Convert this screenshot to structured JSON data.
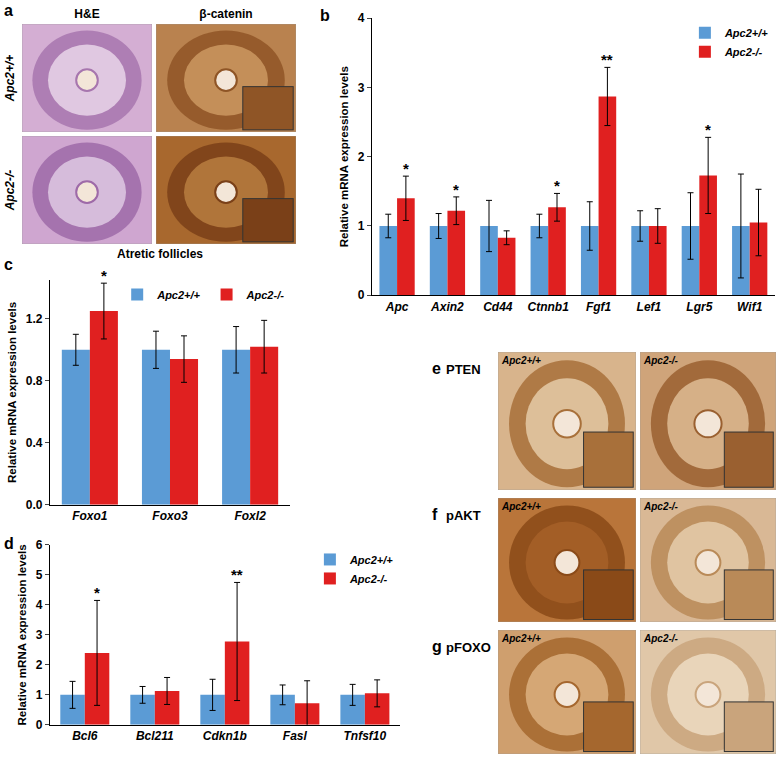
{
  "chart_data": [
    {
      "type": "bar",
      "title": "b",
      "y_label": "Relative mRNA expression levels",
      "categories": [
        "Apc",
        "Axin2",
        "Cd44",
        "Ctnnb1",
        "Fgf1",
        "Lef1",
        "Lgr5",
        "Wif1"
      ],
      "series": [
        {
          "name": "Apc2+/+",
          "color": "#5b9bd5",
          "values": [
            1,
            1,
            1,
            1,
            1,
            1,
            1,
            1
          ],
          "errors": [
            0.17,
            0.18,
            0.37,
            0.17,
            0.35,
            0.22,
            0.48,
            0.75
          ]
        },
        {
          "name": "Apc2-/-",
          "color": "#e02020",
          "values": [
            1.4,
            1.22,
            0.83,
            1.27,
            2.87,
            1.0,
            1.73,
            1.05
          ],
          "errors": [
            0.32,
            0.2,
            0.1,
            0.2,
            0.42,
            0.25,
            0.55,
            0.48
          ],
          "significance": [
            "*",
            "*",
            null,
            "*",
            "**",
            null,
            "*",
            null
          ]
        }
      ],
      "ylim": [
        0,
        4
      ],
      "yticks": [
        0,
        1,
        2,
        3,
        4
      ],
      "legend": "upper right"
    },
    {
      "type": "bar",
      "title": "c",
      "y_label": "Relative mRNA expression levels",
      "categories": [
        "Foxo1",
        "Foxo3",
        "Foxl2"
      ],
      "series": [
        {
          "name": "Apc2+/+",
          "color": "#5b9bd5",
          "values": [
            1,
            1,
            1
          ],
          "errors": [
            0.1,
            0.12,
            0.15
          ]
        },
        {
          "name": "Apc2-/-",
          "color": "#e02020",
          "values": [
            1.25,
            0.94,
            1.02
          ],
          "errors": [
            0.18,
            0.15,
            0.17
          ],
          "significance": [
            "*",
            null,
            null
          ]
        }
      ],
      "ylim": [
        0,
        1.45
      ],
      "yticks": [
        {
          "value": 0,
          "label": "0.0"
        },
        {
          "value": 0.4,
          "label": "0.4"
        },
        {
          "value": 0.8,
          "label": "0.8"
        },
        {
          "value": 1.2,
          "label": "1.2"
        }
      ],
      "legend": "upper right"
    },
    {
      "type": "bar",
      "title": "d",
      "y_label": "Relative mRNA expression levels",
      "categories": [
        "Bcl6",
        "Bcl211",
        "Cdkn1b",
        "Fasl",
        "Tnfsf10"
      ],
      "series": [
        {
          "name": "Apc2+/+",
          "color": "#5b9bd5",
          "values": [
            1,
            1,
            1,
            1,
            1
          ],
          "errors": [
            0.45,
            0.28,
            0.52,
            0.33,
            0.35
          ]
        },
        {
          "name": "Apc2-/-",
          "color": "#e02020",
          "values": [
            2.4,
            1.13,
            2.78,
            0.72,
            1.05
          ],
          "errors": [
            1.75,
            0.45,
            1.97,
            0.75,
            0.45
          ],
          "significance": [
            "*",
            null,
            "**",
            null,
            null
          ]
        }
      ],
      "ylim": [
        0,
        6
      ],
      "yticks": [
        0,
        1,
        2,
        3,
        4,
        5,
        6
      ],
      "legend": "upper right"
    }
  ],
  "images": {
    "a": {
      "label": "a",
      "columns": [
        "H&E",
        "β-catenin"
      ],
      "rows": [
        "Apc2+/+",
        "Apc2-/-"
      ],
      "caption": "Atretic follicles"
    },
    "stains": [
      {
        "label": "e",
        "title": "PTEN",
        "samples": [
          "Apc2+/+",
          "Apc2-/-"
        ]
      },
      {
        "label": "f",
        "title": "pAKT",
        "samples": [
          "Apc2+/+",
          "Apc2-/-"
        ]
      },
      {
        "label": "g",
        "title": "pFOXO",
        "samples": [
          "Apc2+/+",
          "Apc2-/-"
        ]
      }
    ]
  }
}
